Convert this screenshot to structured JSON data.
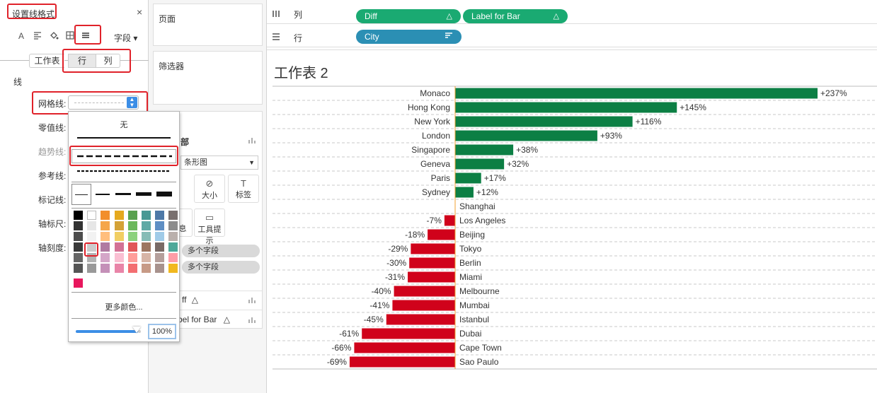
{
  "format_pane": {
    "title": "设置线格式",
    "close_glyph": "×",
    "icons": [
      "font-icon",
      "align-icon",
      "fill-icon",
      "borders-icon",
      "lines-icon"
    ],
    "field_dropdown": "字段",
    "tabs": {
      "sheet": "工作表",
      "rows": "行",
      "columns": "列"
    },
    "section": "线",
    "props": {
      "grid_lines": "网格线:",
      "zero_lines": "零值线:",
      "trend_lines": "趋势线:",
      "ref_lines": "参考线:",
      "drop_lines": "标记线:",
      "axis_rulers": "轴标尺:",
      "axis_ticks": "轴刻度:"
    }
  },
  "line_popup": {
    "none_label": "无",
    "more_colors": "更多颜色...",
    "opacity": "100%",
    "opacity_fraction": 1.0,
    "colors": [
      [
        "#000000",
        "#ffffff",
        "#f28e2b",
        "#e5a91f",
        "#59a14f",
        "#499894",
        "#4e79a7",
        "#79706e"
      ],
      [
        "#333333",
        "#e6e6e6",
        "#f5a64a",
        "#d4a237",
        "#6cb85c",
        "#5fa9a5",
        "#5f8fc4",
        "#8c8c8c"
      ],
      [
        "#4d4d4d",
        "#f2f2f2",
        "#ffbe7d",
        "#f1ce63",
        "#8cd17d",
        "#86bcb6",
        "#a0cbe8",
        "#bab0ac"
      ],
      [
        "#3a3a3a",
        "#cccccc",
        "#b07aa1",
        "#d37295",
        "#e15759",
        "#9d7660",
        "#796a66",
        "#4fa89a"
      ],
      [
        "#666666",
        "#b3b3b3",
        "#d4a6c8",
        "#fabfd2",
        "#ff9d9a",
        "#d7b5a6",
        "#b59f9b",
        "#ff9da7"
      ],
      [
        "#555555",
        "#999999",
        "#c490b8",
        "#e985a8",
        "#f36e71",
        "#c79a86",
        "#a8928d",
        "#f1b81f"
      ]
    ],
    "extra_color": "#e8175d",
    "selected_color": "#cccccc"
  },
  "panels": {
    "pages": "页面",
    "filters": "筛选器",
    "marks_heading": "部",
    "mark_type": "条形图",
    "mark_size": "大小",
    "mark_label": "标签",
    "mark_detail": "息",
    "mark_tooltip": "工具提示",
    "pill_multi_1": "多个字段",
    "pill_multi_2": "多个字段",
    "field_diff": "ff",
    "field_label": "bel for Bar",
    "delta": "△"
  },
  "shelves": {
    "columns_label": "列",
    "rows_label": "行",
    "column_pills": [
      {
        "name": "Diff",
        "mark": "△"
      },
      {
        "name": "Label for Bar",
        "mark": "△"
      }
    ],
    "row_pills": [
      {
        "name": "City"
      }
    ]
  },
  "sheet": {
    "title": "工作表 2"
  },
  "chart_data": {
    "type": "bar",
    "orientation": "horizontal",
    "categories": [
      "Monaco",
      "Hong Kong",
      "New York",
      "London",
      "Singapore",
      "Geneva",
      "Paris",
      "Sydney",
      "Shanghai",
      "Los Angeles",
      "Beijing",
      "Tokyo",
      "Berlin",
      "Miami",
      "Melbourne",
      "Mumbai",
      "Istanbul",
      "Dubai",
      "Cape Town",
      "Sao Paulo"
    ],
    "values": [
      237,
      145,
      116,
      93,
      38,
      32,
      17,
      12,
      0,
      -7,
      -18,
      -29,
      -30,
      -31,
      -40,
      -41,
      -45,
      -61,
      -66,
      -69
    ],
    "data_labels": [
      "+237%",
      "+145%",
      "+116%",
      "+93%",
      "+38%",
      "+32%",
      "+17%",
      "+12%",
      "",
      "-7%",
      "-18%",
      "-29%",
      "-30%",
      "-31%",
      "-40%",
      "-41%",
      "-45%",
      "-61%",
      "-66%",
      "-69%"
    ],
    "positive_color": "#0c7f44",
    "negative_color": "#d0021b",
    "gridlines": "dashed",
    "xlim": [
      -69,
      237
    ]
  }
}
